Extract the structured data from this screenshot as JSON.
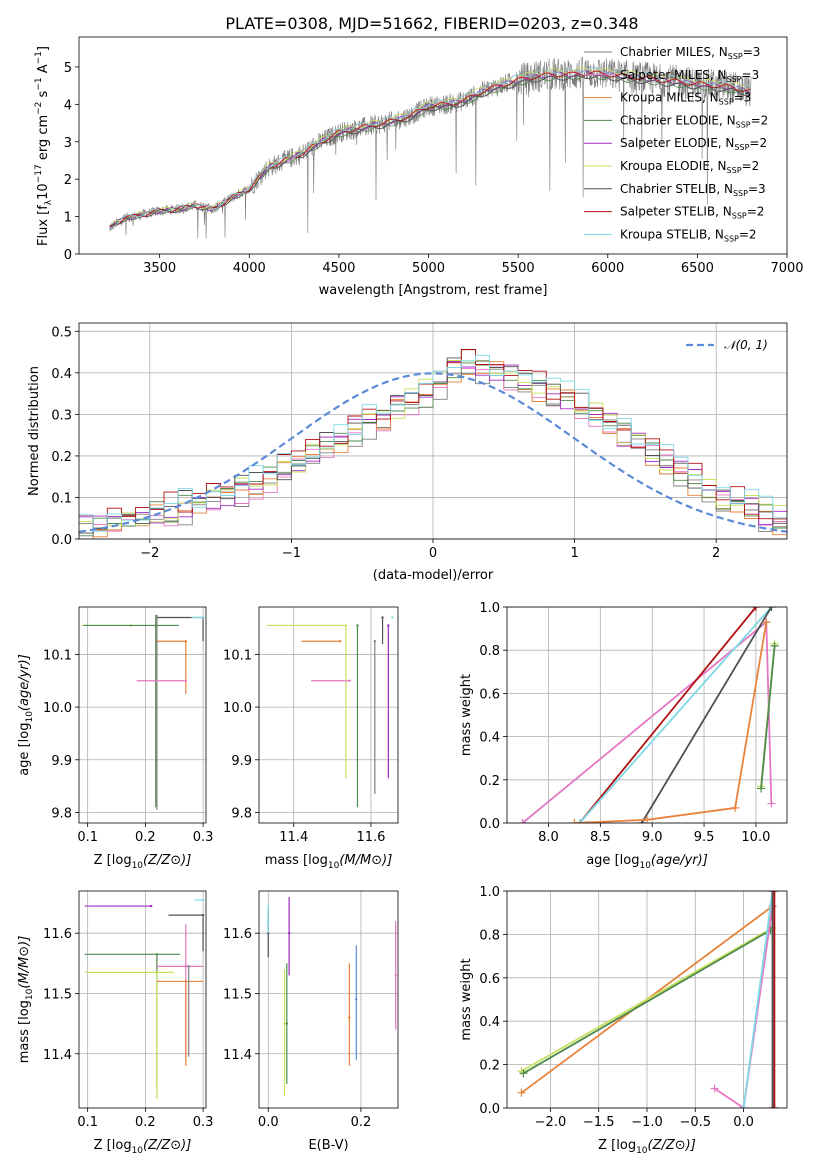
{
  "title": "PLATE=0308, MJD=51662, FIBERID=0203, z=0.348",
  "colors": {
    "Chabrier MILES": "#808080",
    "Salpeter MILES": "#e377c2",
    "Kroupa MILES": "#e8823c",
    "Chabrier ELODIE": "#4e8a4e",
    "Salpeter ELODIE": "#a12ac2",
    "Kroupa ELODIE": "#c8e05c",
    "Chabrier STELIB": "#505050",
    "Salpeter STELIB": "#b01010",
    "Kroupa STELIB": "#7fd8e8",
    "normal": "#5b8bd8",
    "data": "#7a7a7a"
  },
  "chart_data": [
    {
      "type": "line",
      "title": "PLATE=0308, MJD=51662, FIBERID=0203, z=0.348",
      "xlabel": "wavelength [Angstrom, rest frame]",
      "ylabel": "Flux [f_λ 10^-17 erg cm^-2 s^-1 A^-1]",
      "xlim": [
        3050,
        7000
      ],
      "ylim": [
        0,
        5.8
      ],
      "xticks": [
        "3500",
        "4000",
        "4500",
        "5000",
        "5500",
        "6000",
        "6500",
        "7000"
      ],
      "yticks": [
        "0",
        "1",
        "2",
        "3",
        "4",
        "5"
      ],
      "legend": [
        {
          "name": "Chabrier MILES",
          "sub": "SSP",
          "n": "3"
        },
        {
          "name": "Salpeter MILES",
          "sub": "SSP",
          "n": "3"
        },
        {
          "name": "Kroupa MILES",
          "sub": "SSP",
          "n": "3"
        },
        {
          "name": "Chabrier ELODIE",
          "sub": "SSP",
          "n": "2"
        },
        {
          "name": "Salpeter ELODIE",
          "sub": "SSP",
          "n": "2"
        },
        {
          "name": "Kroupa ELODIE",
          "sub": "SSP",
          "n": "2"
        },
        {
          "name": "Chabrier STELIB",
          "sub": "SSP",
          "n": "3"
        },
        {
          "name": "Salpeter STELIB",
          "sub": "SSP",
          "n": "2"
        },
        {
          "name": "Kroupa STELIB",
          "sub": "SSP",
          "n": "2"
        }
      ],
      "continuum": {
        "x": [
          3220,
          3300,
          3400,
          3500,
          3600,
          3700,
          3800,
          3900,
          4000,
          4100,
          4200,
          4300,
          4400,
          4500,
          4600,
          4700,
          4800,
          4900,
          5000,
          5100,
          5200,
          5300,
          5400,
          5500,
          5600,
          5700,
          5800,
          5900,
          6000,
          6100,
          6200,
          6300,
          6400,
          6500,
          6600,
          6700,
          6800
        ],
        "y": [
          0.7,
          0.95,
          1.05,
          1.15,
          1.2,
          1.3,
          1.2,
          1.5,
          1.75,
          2.3,
          2.5,
          2.7,
          3.0,
          3.25,
          3.35,
          3.45,
          3.55,
          3.7,
          3.95,
          4.0,
          4.1,
          4.35,
          4.5,
          4.65,
          4.75,
          4.8,
          4.8,
          4.85,
          4.8,
          4.75,
          4.7,
          4.65,
          4.6,
          4.55,
          4.5,
          4.45,
          4.35
        ]
      }
    },
    {
      "type": "line",
      "xlabel": "(data-model)/error",
      "ylabel": "Normed distribution",
      "xlim": [
        -2.5,
        2.5
      ],
      "ylim": [
        0,
        0.52
      ],
      "xticks": [
        "−2",
        "−1",
        "0",
        "1",
        "2"
      ],
      "yticks": [
        "0.0",
        "0.1",
        "0.2",
        "0.3",
        "0.4",
        "0.5"
      ],
      "legend": "N(0,1)",
      "bin_width": 0.1,
      "profile": {
        "x": [
          -2.5,
          -2.0,
          -1.5,
          -1.0,
          -0.5,
          0.0,
          0.2,
          0.5,
          1.0,
          1.5,
          2.0,
          2.5
        ],
        "y": [
          0.02,
          0.06,
          0.1,
          0.17,
          0.27,
          0.36,
          0.43,
          0.4,
          0.33,
          0.22,
          0.11,
          0.04
        ]
      }
    },
    {
      "type": "scatter",
      "xlabel": "Z [log10(Z/Z⊙)]",
      "ylabel": "age [log10(age/yr)]",
      "xlim": [
        0.085,
        0.305
      ],
      "ylim": [
        9.78,
        10.19
      ],
      "xticks": [
        "0.1",
        "0.2",
        "0.3"
      ],
      "yticks": [
        "9.8",
        "9.9",
        "10.0",
        "10.1"
      ],
      "points": [
        {
          "s": "Kroupa ELODIE",
          "x": 0.175,
          "y": 10.155,
          "xerr": [
            0.085,
            0.0
          ],
          "yerr": [
            0.0,
            0.0
          ]
        },
        {
          "s": "Chabrier ELODIE",
          "x": 0.218,
          "y": 10.155,
          "xerr": [
            0.125,
            0.04
          ],
          "yerr": [
            0.345,
            0.02
          ]
        },
        {
          "s": "Chabrier MILES",
          "x": 0.22,
          "y": 10.125,
          "xerr": [
            0.0,
            0.0
          ],
          "yerr": [
            0.32,
            0.05
          ]
        },
        {
          "s": "Kroupa MILES",
          "x": 0.27,
          "y": 10.125,
          "xerr": [
            0.05,
            0.0
          ],
          "yerr": [
            0.1,
            0.0
          ]
        },
        {
          "s": "Chabrier STELIB",
          "x": 0.3,
          "y": 10.17,
          "xerr": [
            0.08,
            0.0
          ],
          "yerr": [
            0.045,
            0.0
          ]
        },
        {
          "s": "Kroupa STELIB",
          "x": 0.3,
          "y": 10.17,
          "xerr": [
            0.02,
            0.0
          ],
          "yerr": [
            0.0,
            0.0
          ]
        },
        {
          "s": "Salpeter MILES",
          "x": 0.27,
          "y": 10.05,
          "xerr": [
            0.085,
            0.0
          ],
          "yerr": [
            0.0,
            0.0
          ]
        }
      ]
    },
    {
      "type": "scatter",
      "xlabel": "mass [log10(M/M⊙)]",
      "ylabel": "",
      "xlim": [
        11.31,
        11.67
      ],
      "ylim": [
        9.78,
        10.19
      ],
      "xticks": [
        "11.4",
        "11.6"
      ],
      "yticks": [
        "9.8",
        "9.9",
        "10.0",
        "10.1"
      ],
      "points": [
        {
          "s": "Kroupa ELODIE",
          "x": 11.535,
          "y": 10.155,
          "xerr": [
            0.205,
            0.0
          ],
          "yerr": [
            0.29,
            0.0
          ]
        },
        {
          "s": "Chabrier ELODIE",
          "x": 11.565,
          "y": 10.155,
          "xerr": [
            0.0,
            0.0
          ],
          "yerr": [
            0.345,
            0.0
          ]
        },
        {
          "s": "Kroupa MILES",
          "x": 11.52,
          "y": 10.125,
          "xerr": [
            0.1,
            0.0
          ],
          "yerr": [
            0.0,
            0.0
          ]
        },
        {
          "s": "Chabrier MILES",
          "x": 11.61,
          "y": 10.125,
          "xerr": [
            0.0,
            0.0
          ],
          "yerr": [
            0.29,
            0.0
          ]
        },
        {
          "s": "Salpeter ELODIE",
          "x": 11.645,
          "y": 10.155,
          "xerr": [
            0.0,
            0.0
          ],
          "yerr": [
            0.29,
            0.0
          ]
        },
        {
          "s": "Chabrier STELIB",
          "x": 11.63,
          "y": 10.17,
          "xerr": [
            0.0,
            0.0
          ],
          "yerr": [
            0.05,
            0.0
          ]
        },
        {
          "s": "Kroupa STELIB",
          "x": 11.655,
          "y": 10.17,
          "xerr": [
            0.0,
            0.0
          ],
          "yerr": [
            0.0,
            0.0
          ]
        },
        {
          "s": "Salpeter MILES",
          "x": 11.545,
          "y": 10.05,
          "xerr": [
            0.1,
            0.0
          ],
          "yerr": [
            0.0,
            0.0
          ]
        }
      ]
    },
    {
      "type": "line",
      "xlabel": "age [log10(age/yr)]",
      "ylabel": "mass weight",
      "xlim": [
        7.6,
        10.3
      ],
      "ylim": [
        0,
        1.0
      ],
      "xticks": [
        "8.0",
        "8.5",
        "9.0",
        "9.5",
        "10.0"
      ],
      "yticks": [
        "0.0",
        "0.2",
        "0.4",
        "0.6",
        "0.8",
        "1.0"
      ],
      "series": [
        {
          "s": "Salpeter MILES",
          "x": [
            7.75,
            10.1,
            10.15
          ],
          "y": [
            0.0,
            0.93,
            0.09
          ]
        },
        {
          "s": "Salpeter STELIB",
          "x": [
            8.3,
            10.0
          ],
          "y": [
            0.0,
            1.0
          ]
        },
        {
          "s": "Kroupa STELIB",
          "x": [
            8.3,
            10.15
          ],
          "y": [
            0.0,
            1.0
          ]
        },
        {
          "s": "Chabrier STELIB",
          "x": [
            8.9,
            10.15
          ],
          "y": [
            0.0,
            1.0
          ]
        },
        {
          "s": "Kroupa MILES",
          "x": [
            8.25,
            8.95,
            9.8,
            10.1
          ],
          "y": [
            0.0,
            0.015,
            0.07,
            0.93
          ]
        },
        {
          "s": "Kroupa ELODIE",
          "x": [
            10.05,
            10.18
          ],
          "y": [
            0.17,
            0.83
          ]
        },
        {
          "s": "Chabrier ELODIE",
          "x": [
            10.05,
            10.18
          ],
          "y": [
            0.16,
            0.82
          ]
        }
      ]
    },
    {
      "type": "scatter",
      "xlabel": "Z [log10(Z/Z⊙)]",
      "ylabel": "mass [log10(M/M⊙)]",
      "xlim": [
        0.085,
        0.305
      ],
      "ylim": [
        11.31,
        11.67
      ],
      "xticks": [
        "0.1",
        "0.2",
        "0.3"
      ],
      "yticks": [
        "11.4",
        "11.5",
        "11.6"
      ],
      "points": [
        {
          "s": "Salpeter ELODIE",
          "x": 0.21,
          "y": 11.645,
          "xerr": [
            0.115,
            0.0
          ],
          "yerr": [
            0.0,
            0.0
          ]
        },
        {
          "s": "Chabrier STELIB",
          "x": 0.3,
          "y": 11.63,
          "xerr": [
            0.06,
            0.0
          ],
          "yerr": [
            0.06,
            0.0
          ]
        },
        {
          "s": "Kroupa STELIB",
          "x": 0.3,
          "y": 11.655,
          "xerr": [
            0.015,
            0.0
          ],
          "yerr": [
            0.0,
            0.0
          ]
        },
        {
          "s": "Chabrier ELODIE",
          "x": 0.22,
          "y": 11.565,
          "xerr": [
            0.125,
            0.04
          ],
          "yerr": [
            0.22,
            0.0
          ]
        },
        {
          "s": "Salpeter MILES",
          "x": 0.27,
          "y": 11.545,
          "xerr": [
            0.05,
            0.03
          ],
          "yerr": [
            0.15,
            0.07
          ]
        },
        {
          "s": "Kroupa ELODIE",
          "x": 0.22,
          "y": 11.535,
          "xerr": [
            0.125,
            0.03
          ],
          "yerr": [
            0.21,
            0.0
          ]
        },
        {
          "s": "Kroupa MILES",
          "x": 0.27,
          "y": 11.52,
          "xerr": [
            0.05,
            0.03
          ],
          "yerr": [
            0.14,
            0.0
          ]
        },
        {
          "s": "Chabrier MILES",
          "x": 0.275,
          "y": 11.545,
          "xerr": [
            0.0,
            0.0
          ],
          "yerr": [
            0.15,
            0.0
          ]
        }
      ]
    },
    {
      "type": "scatter",
      "xlabel": "E(B-V)",
      "ylabel": "",
      "xlim": [
        -0.02,
        0.28
      ],
      "ylim": [
        11.31,
        11.67
      ],
      "xticks": [
        "0.0",
        "0.2"
      ],
      "yticks": [
        "11.4",
        "11.5",
        "11.6"
      ],
      "points": [
        {
          "s": "Chabrier STELIB",
          "x": 0.0,
          "y": 11.6,
          "xerr": [
            0.0,
            0.0
          ],
          "yerr": [
            0.04,
            0.04
          ]
        },
        {
          "s": "Kroupa STELIB",
          "x": 0.0,
          "y": 11.62,
          "xerr": [
            0.0,
            0.0
          ],
          "yerr": [
            0.02,
            0.03
          ]
        },
        {
          "s": "Kroupa ELODIE",
          "x": 0.035,
          "y": 11.45,
          "xerr": [
            0.0,
            0.0
          ],
          "yerr": [
            0.12,
            0.09
          ]
        },
        {
          "s": "Chabrier ELODIE",
          "x": 0.04,
          "y": 11.45,
          "xerr": [
            0.0,
            0.0
          ],
          "yerr": [
            0.1,
            0.1
          ]
        },
        {
          "s": "Salpeter ELODIE",
          "x": 0.045,
          "y": 11.6,
          "xerr": [
            0.0,
            0.0
          ],
          "yerr": [
            0.07,
            0.06
          ]
        },
        {
          "s": "Kroupa MILES",
          "x": 0.175,
          "y": 11.46,
          "xerr": [
            0.0,
            0.0
          ],
          "yerr": [
            0.08,
            0.09
          ]
        },
        {
          "s": "normal",
          "x": 0.19,
          "y": 11.49,
          "xerr": [
            0.0,
            0.0
          ],
          "yerr": [
            0.1,
            0.09
          ]
        },
        {
          "s": "Salpeter MILES",
          "x": 0.275,
          "y": 11.53,
          "xerr": [
            0.0,
            0.0
          ],
          "yerr": [
            0.09,
            0.09
          ]
        }
      ]
    },
    {
      "type": "line",
      "xlabel": "Z [log10(Z/Z⊙)]",
      "ylabel": "mass weight",
      "xlim": [
        -2.45,
        0.45
      ],
      "ylim": [
        0,
        1.0
      ],
      "xticks": [
        "−2.0",
        "−1.5",
        "−1.0",
        "−0.5",
        "0.0"
      ],
      "yticks": [
        "0.0",
        "0.2",
        "0.4",
        "0.6",
        "0.8",
        "1.0"
      ],
      "series": [
        {
          "s": "Kroupa MILES",
          "x": [
            -2.3,
            0.3
          ],
          "y": [
            0.07,
            0.93
          ]
        },
        {
          "s": "Kroupa ELODIE",
          "x": [
            -2.3,
            0.3
          ],
          "y": [
            0.17,
            0.83
          ]
        },
        {
          "s": "Chabrier ELODIE",
          "x": [
            -2.28,
            0.28
          ],
          "y": [
            0.16,
            0.82
          ]
        },
        {
          "s": "Salpeter MILES",
          "x": [
            -0.3,
            0.0,
            0.3
          ],
          "y": [
            0.09,
            0.0,
            0.93
          ]
        },
        {
          "s": "Kroupa STELIB",
          "x": [
            0.0,
            0.3
          ],
          "y": [
            0.0,
            1.0
          ]
        },
        {
          "s": "Chabrier STELIB",
          "x": [
            0.3,
            0.3
          ],
          "y": [
            0.0,
            1.0
          ]
        },
        {
          "s": "Salpeter STELIB",
          "x": [
            0.32,
            0.32
          ],
          "y": [
            0.0,
            1.0
          ]
        }
      ]
    }
  ]
}
